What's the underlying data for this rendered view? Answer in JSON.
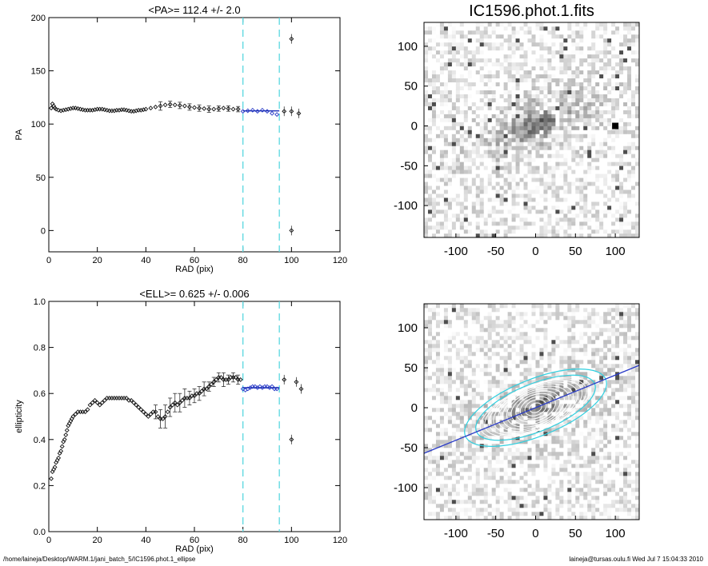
{
  "footer": {
    "path": "/home/laineja/Desktop/WARM.1/jani_batch_5/IC1596.phot.1_ellipse",
    "stamp": "laineja@tursas.oulu.fi  Wed Jul  7 15:04:33 2010"
  },
  "chart_data": [
    {
      "type": "scatter",
      "title": "<PA>= 112.4 +/-   2.0",
      "xlabel": "RAD (pix)",
      "ylabel": "PA",
      "xlim": [
        0,
        120
      ],
      "ylim": [
        -20,
        200
      ],
      "xticks": [
        0,
        20,
        40,
        60,
        80,
        100,
        120
      ],
      "yticks": [
        0,
        50,
        100,
        150,
        200
      ],
      "vlines": [
        80,
        95
      ],
      "fit": {
        "x": [
          80,
          95
        ],
        "y": 112.4
      },
      "series": [
        {
          "points": [
            [
              1,
              115
            ],
            [
              1.5,
              119
            ],
            [
              2,
              117
            ],
            [
              2.5,
              115
            ],
            [
              3,
              114
            ],
            [
              4,
              113
            ],
            [
              5,
              112.5
            ],
            [
              6,
              113
            ],
            [
              7,
              113.5
            ],
            [
              8,
              114
            ],
            [
              9,
              114.5
            ],
            [
              10,
              115
            ],
            [
              11,
              115
            ],
            [
              12,
              114.5
            ],
            [
              13,
              114
            ],
            [
              14,
              113.5
            ],
            [
              15,
              113
            ],
            [
              16,
              113
            ],
            [
              17,
              113
            ],
            [
              18,
              113
            ],
            [
              19,
              113.5
            ],
            [
              20,
              114
            ],
            [
              21,
              114
            ],
            [
              22,
              114
            ],
            [
              23,
              113.5
            ],
            [
              24,
              113
            ],
            [
              25,
              112.5
            ],
            [
              26,
              112.5
            ],
            [
              27,
              112.5
            ],
            [
              28,
              113
            ],
            [
              29,
              113
            ],
            [
              30,
              113.5
            ],
            [
              31,
              113.5
            ],
            [
              32,
              113
            ],
            [
              33,
              112.5
            ],
            [
              34,
              112
            ],
            [
              35,
              112
            ],
            [
              36,
              112.5
            ],
            [
              37,
              113
            ],
            [
              38,
              113
            ],
            [
              39,
              113.5
            ],
            [
              40,
              114
            ],
            [
              42,
              115
            ],
            [
              44,
              116
            ],
            [
              46,
              117
            ],
            [
              48,
              118
            ],
            [
              50,
              118.5
            ],
            [
              52,
              118
            ],
            [
              54,
              117.5
            ],
            [
              56,
              117
            ],
            [
              58,
              116
            ],
            [
              60,
              115.5
            ],
            [
              62,
              115
            ],
            [
              64,
              114.5
            ],
            [
              66,
              114
            ],
            [
              68,
              114
            ],
            [
              70,
              114.5
            ],
            [
              72,
              115
            ],
            [
              74,
              114.5
            ],
            [
              76,
              114
            ],
            [
              78,
              114
            ]
          ],
          "errors": [
            [
              46,
              4
            ],
            [
              50,
              3
            ],
            [
              54,
              3
            ],
            [
              58,
              3
            ],
            [
              62,
              3
            ],
            [
              66,
              3
            ],
            [
              70,
              2.5
            ],
            [
              74,
              2.5
            ],
            [
              78,
              2.5
            ]
          ],
          "outliers": [
            [
              100,
              180
            ],
            [
              100,
              0
            ],
            [
              97,
              112
            ],
            [
              100,
              112
            ],
            [
              103,
              110
            ]
          ]
        },
        {
          "name": "fit-range",
          "points": [
            [
              80,
              112
            ],
            [
              82,
              112.5
            ],
            [
              84,
              113
            ],
            [
              86,
              112
            ],
            [
              88,
              113
            ],
            [
              90,
              112
            ],
            [
              92,
              110
            ],
            [
              94,
              109
            ]
          ]
        }
      ]
    },
    {
      "type": "scatter",
      "title": "<ELL>= 0.625 +/-  0.006",
      "xlabel": "RAD (pix)",
      "ylabel": "ellipticity",
      "xlim": [
        0,
        120
      ],
      "ylim": [
        0.0,
        1.0
      ],
      "xticks": [
        0,
        20,
        40,
        60,
        80,
        100,
        120
      ],
      "yticks": [
        0.0,
        0.2,
        0.4,
        0.6,
        0.8,
        1.0
      ],
      "vlines": [
        80,
        95
      ],
      "fit": {
        "x": [
          80,
          95
        ],
        "y": 0.625
      },
      "series": [
        {
          "points": [
            [
              1,
              0.23
            ],
            [
              1.5,
              0.26
            ],
            [
              2,
              0.27
            ],
            [
              2.5,
              0.28
            ],
            [
              3,
              0.3
            ],
            [
              3.5,
              0.31
            ],
            [
              4,
              0.32
            ],
            [
              4.5,
              0.34
            ],
            [
              5,
              0.35
            ],
            [
              5.5,
              0.37
            ],
            [
              6,
              0.39
            ],
            [
              6.5,
              0.4
            ],
            [
              7,
              0.42
            ],
            [
              7.5,
              0.44
            ],
            [
              8,
              0.46
            ],
            [
              8.5,
              0.47
            ],
            [
              9,
              0.48
            ],
            [
              9.5,
              0.49
            ],
            [
              10,
              0.5
            ],
            [
              11,
              0.51
            ],
            [
              12,
              0.52
            ],
            [
              13,
              0.52
            ],
            [
              14,
              0.52
            ],
            [
              15,
              0.52
            ],
            [
              16,
              0.53
            ],
            [
              17,
              0.55
            ],
            [
              18,
              0.56
            ],
            [
              19,
              0.57
            ],
            [
              20,
              0.56
            ],
            [
              21,
              0.55
            ],
            [
              22,
              0.56
            ],
            [
              23,
              0.57
            ],
            [
              24,
              0.58
            ],
            [
              25,
              0.58
            ],
            [
              26,
              0.58
            ],
            [
              27,
              0.58
            ],
            [
              28,
              0.58
            ],
            [
              29,
              0.58
            ],
            [
              30,
              0.58
            ],
            [
              31,
              0.58
            ],
            [
              32,
              0.58
            ],
            [
              33,
              0.57
            ],
            [
              34,
              0.57
            ],
            [
              35,
              0.56
            ],
            [
              36,
              0.55
            ],
            [
              37,
              0.54
            ],
            [
              38,
              0.53
            ],
            [
              39,
              0.52
            ],
            [
              40,
              0.51
            ],
            [
              41,
              0.5
            ],
            [
              42,
              0.51
            ],
            [
              43,
              0.52
            ],
            [
              44,
              0.52
            ],
            [
              45,
              0.5
            ],
            [
              46,
              0.49
            ],
            [
              47,
              0.49
            ],
            [
              48,
              0.5
            ],
            [
              49,
              0.52
            ],
            [
              50,
              0.54
            ],
            [
              51,
              0.55
            ],
            [
              52,
              0.56
            ],
            [
              53,
              0.55
            ],
            [
              54,
              0.56
            ],
            [
              55,
              0.57
            ],
            [
              56,
              0.58
            ],
            [
              57,
              0.58
            ],
            [
              58,
              0.58
            ],
            [
              59,
              0.59
            ],
            [
              60,
              0.59
            ],
            [
              61,
              0.6
            ],
            [
              62,
              0.6
            ],
            [
              63,
              0.61
            ],
            [
              64,
              0.62
            ],
            [
              65,
              0.62
            ],
            [
              66,
              0.63
            ],
            [
              67,
              0.64
            ],
            [
              68,
              0.65
            ],
            [
              69,
              0.66
            ],
            [
              70,
              0.67
            ],
            [
              71,
              0.67
            ],
            [
              72,
              0.66
            ],
            [
              73,
              0.66
            ],
            [
              74,
              0.66
            ],
            [
              75,
              0.67
            ],
            [
              76,
              0.67
            ],
            [
              77,
              0.67
            ],
            [
              78,
              0.66
            ],
            [
              79,
              0.66
            ]
          ],
          "errors": [
            [
              44,
              0.03
            ],
            [
              46,
              0.04
            ],
            [
              48,
              0.05
            ],
            [
              50,
              0.04
            ],
            [
              52,
              0.04
            ],
            [
              54,
              0.04
            ],
            [
              56,
              0.04
            ],
            [
              58,
              0.03
            ],
            [
              60,
              0.03
            ],
            [
              62,
              0.03
            ],
            [
              64,
              0.03
            ],
            [
              66,
              0.02
            ],
            [
              68,
              0.02
            ],
            [
              70,
              0.02
            ],
            [
              72,
              0.03
            ],
            [
              74,
              0.02
            ],
            [
              76,
              0.02
            ],
            [
              78,
              0.02
            ]
          ],
          "outliers": [
            [
              97,
              0.66
            ],
            [
              100,
              0.4
            ],
            [
              102,
              0.65
            ],
            [
              104,
              0.62
            ]
          ]
        },
        {
          "name": "fit-range",
          "points": [
            [
              80,
              0.62
            ],
            [
              81,
              0.615
            ],
            [
              82,
              0.62
            ],
            [
              83,
              0.625
            ],
            [
              84,
              0.63
            ],
            [
              85,
              0.63
            ],
            [
              86,
              0.625
            ],
            [
              87,
              0.63
            ],
            [
              88,
              0.625
            ],
            [
              89,
              0.63
            ],
            [
              90,
              0.63
            ],
            [
              91,
              0.625
            ],
            [
              92,
              0.63
            ],
            [
              93,
              0.62
            ],
            [
              94,
              0.62
            ]
          ]
        }
      ]
    },
    {
      "type": "heatmap",
      "title": "IC1596.phot.1.fits",
      "xlabel": "",
      "ylabel": "",
      "xlim": [
        -140,
        130
      ],
      "ylim": [
        -140,
        130
      ],
      "xticks": [
        -100,
        -50,
        0,
        50,
        100
      ],
      "yticks": [
        -100,
        -50,
        0,
        50,
        100
      ],
      "colormap": "greyscale",
      "galaxy": {
        "center": [
          0,
          0
        ],
        "pa_deg": 22,
        "bright_star": [
          100,
          0
        ]
      }
    },
    {
      "type": "heatmap",
      "title": "",
      "xlabel": "",
      "ylabel": "",
      "xlim": [
        -140,
        130
      ],
      "ylim": [
        -140,
        130
      ],
      "xticks": [
        -100,
        -50,
        0,
        50,
        100
      ],
      "yticks": [
        -100,
        -50,
        0,
        50,
        100
      ],
      "colormap": "greyscale",
      "overlay": {
        "major_axis": {
          "from": [
            -140,
            -57
          ],
          "to": [
            130,
            53
          ],
          "color": "#2a3cc8"
        },
        "isophote_color": "#ffffff",
        "fit_isophote_color": "#30d0e0",
        "pa_deg": 22,
        "ellipticity": 0.625,
        "fit_radii": [
          80,
          95
        ]
      }
    }
  ]
}
